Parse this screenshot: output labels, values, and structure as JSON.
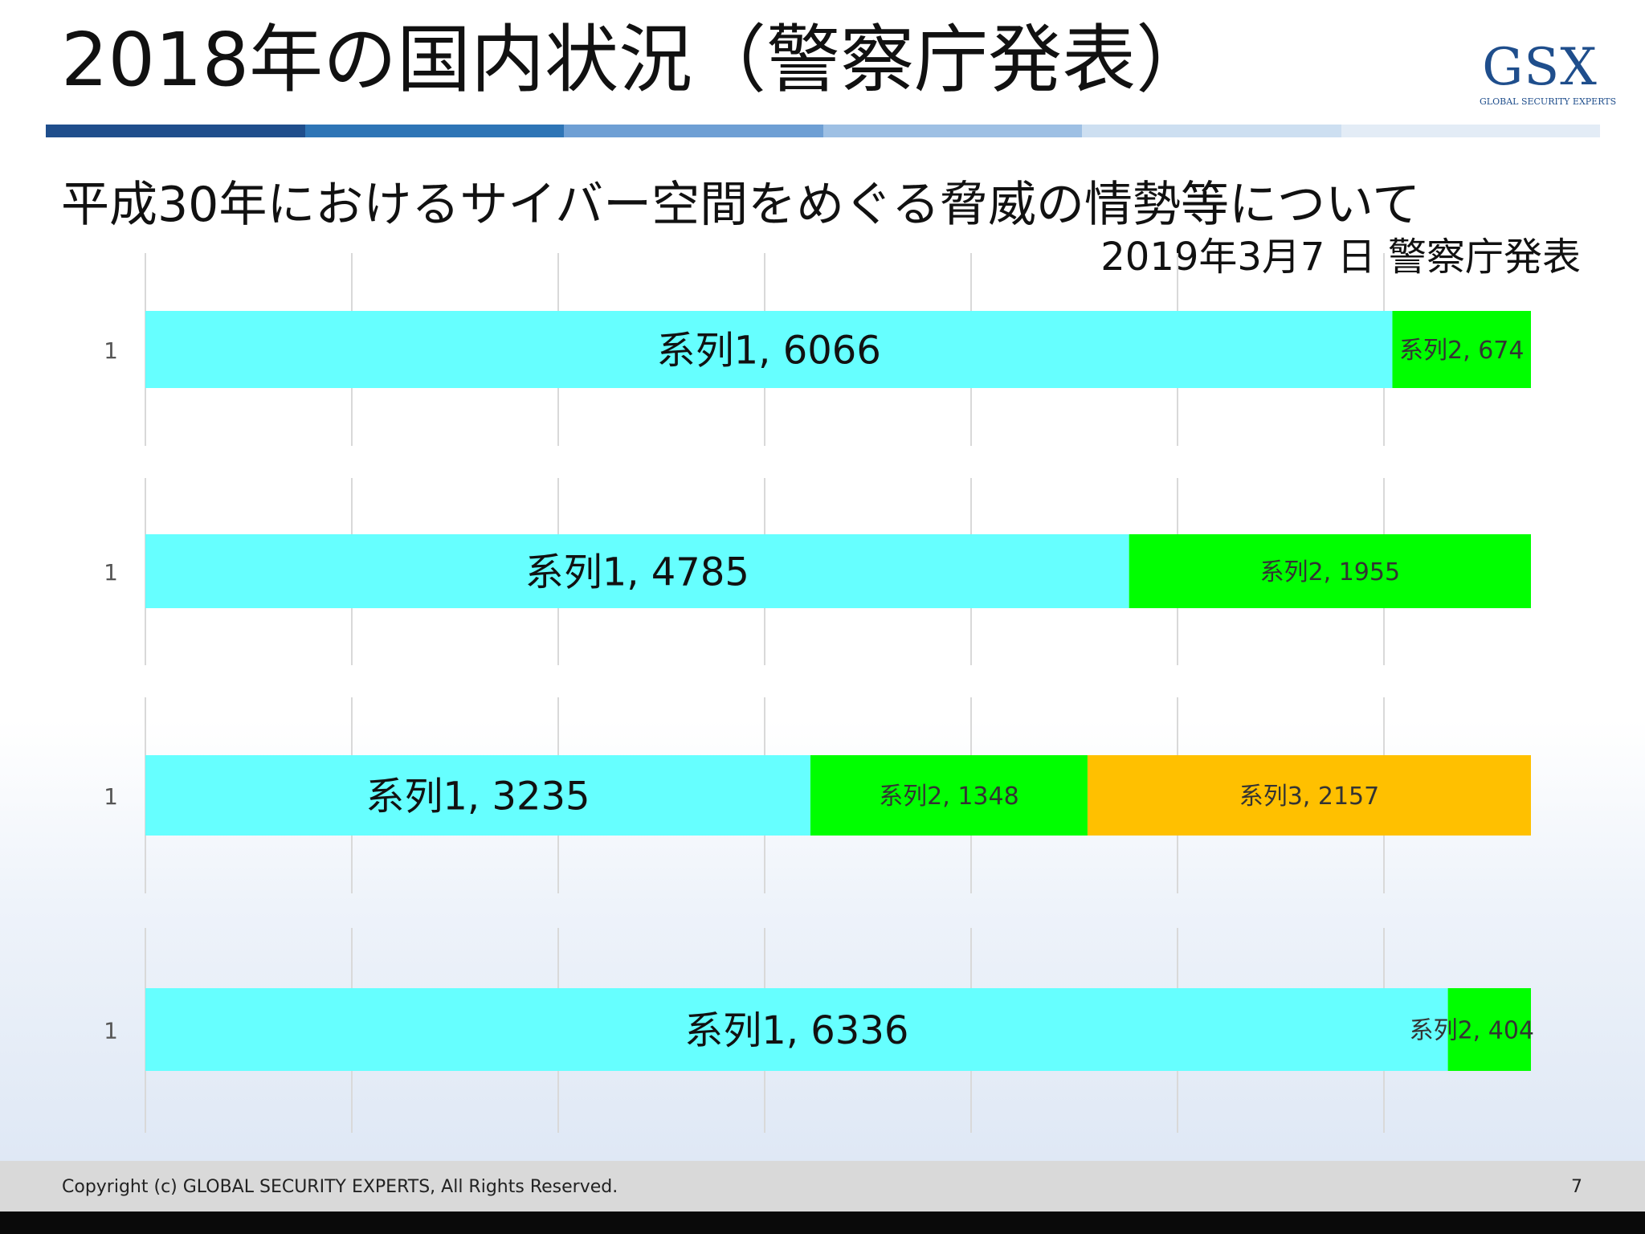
{
  "slide": {
    "title": "2018年の国内状況（警察庁発表）",
    "subtitle": "平成30年におけるサイバー空間をめぐる脅威の情勢等について",
    "source": "2019年3月7 日 警察庁発表",
    "logo": {
      "mark": "GSX",
      "tagline": "GLOBAL SECURITY EXPERTS"
    },
    "accent_colors": [
      "#1f4e8c",
      "#2e75b6",
      "#6e9fd4",
      "#9ec0e4",
      "#cddff1",
      "#e3ecf6"
    ],
    "footer": {
      "copyright": "Copyright (c) GLOBAL SECURITY EXPERTS, All Rights Reserved.",
      "page_number": "7"
    }
  },
  "chart_data": [
    {
      "type": "bar",
      "orientation": "horizontal",
      "stacked": true,
      "categories": [
        "1"
      ],
      "series": [
        {
          "name": "系列1",
          "values": [
            6066
          ],
          "color": "#66ffff"
        },
        {
          "name": "系列2",
          "values": [
            674
          ],
          "color": "#00ff00"
        }
      ],
      "xlim": [
        0,
        6740
      ],
      "grid": true
    },
    {
      "type": "bar",
      "orientation": "horizontal",
      "stacked": true,
      "categories": [
        "1"
      ],
      "series": [
        {
          "name": "系列1",
          "values": [
            4785
          ],
          "color": "#66ffff"
        },
        {
          "name": "系列2",
          "values": [
            1955
          ],
          "color": "#00ff00"
        }
      ],
      "xlim": [
        0,
        6740
      ],
      "grid": true
    },
    {
      "type": "bar",
      "orientation": "horizontal",
      "stacked": true,
      "categories": [
        "1"
      ],
      "series": [
        {
          "name": "系列1",
          "values": [
            3235
          ],
          "color": "#66ffff"
        },
        {
          "name": "系列2",
          "values": [
            1348
          ],
          "color": "#00ff00"
        },
        {
          "name": "系列3",
          "values": [
            2157
          ],
          "color": "#ffc000"
        }
      ],
      "xlim": [
        0,
        6740
      ],
      "grid": true
    },
    {
      "type": "bar",
      "orientation": "horizontal",
      "stacked": true,
      "categories": [
        "1"
      ],
      "series": [
        {
          "name": "系列1",
          "values": [
            6336
          ],
          "color": "#66ffff"
        },
        {
          "name": "系列2",
          "values": [
            404
          ],
          "color": "#00ff00"
        }
      ],
      "xlim": [
        0,
        6740
      ],
      "grid": true
    }
  ]
}
